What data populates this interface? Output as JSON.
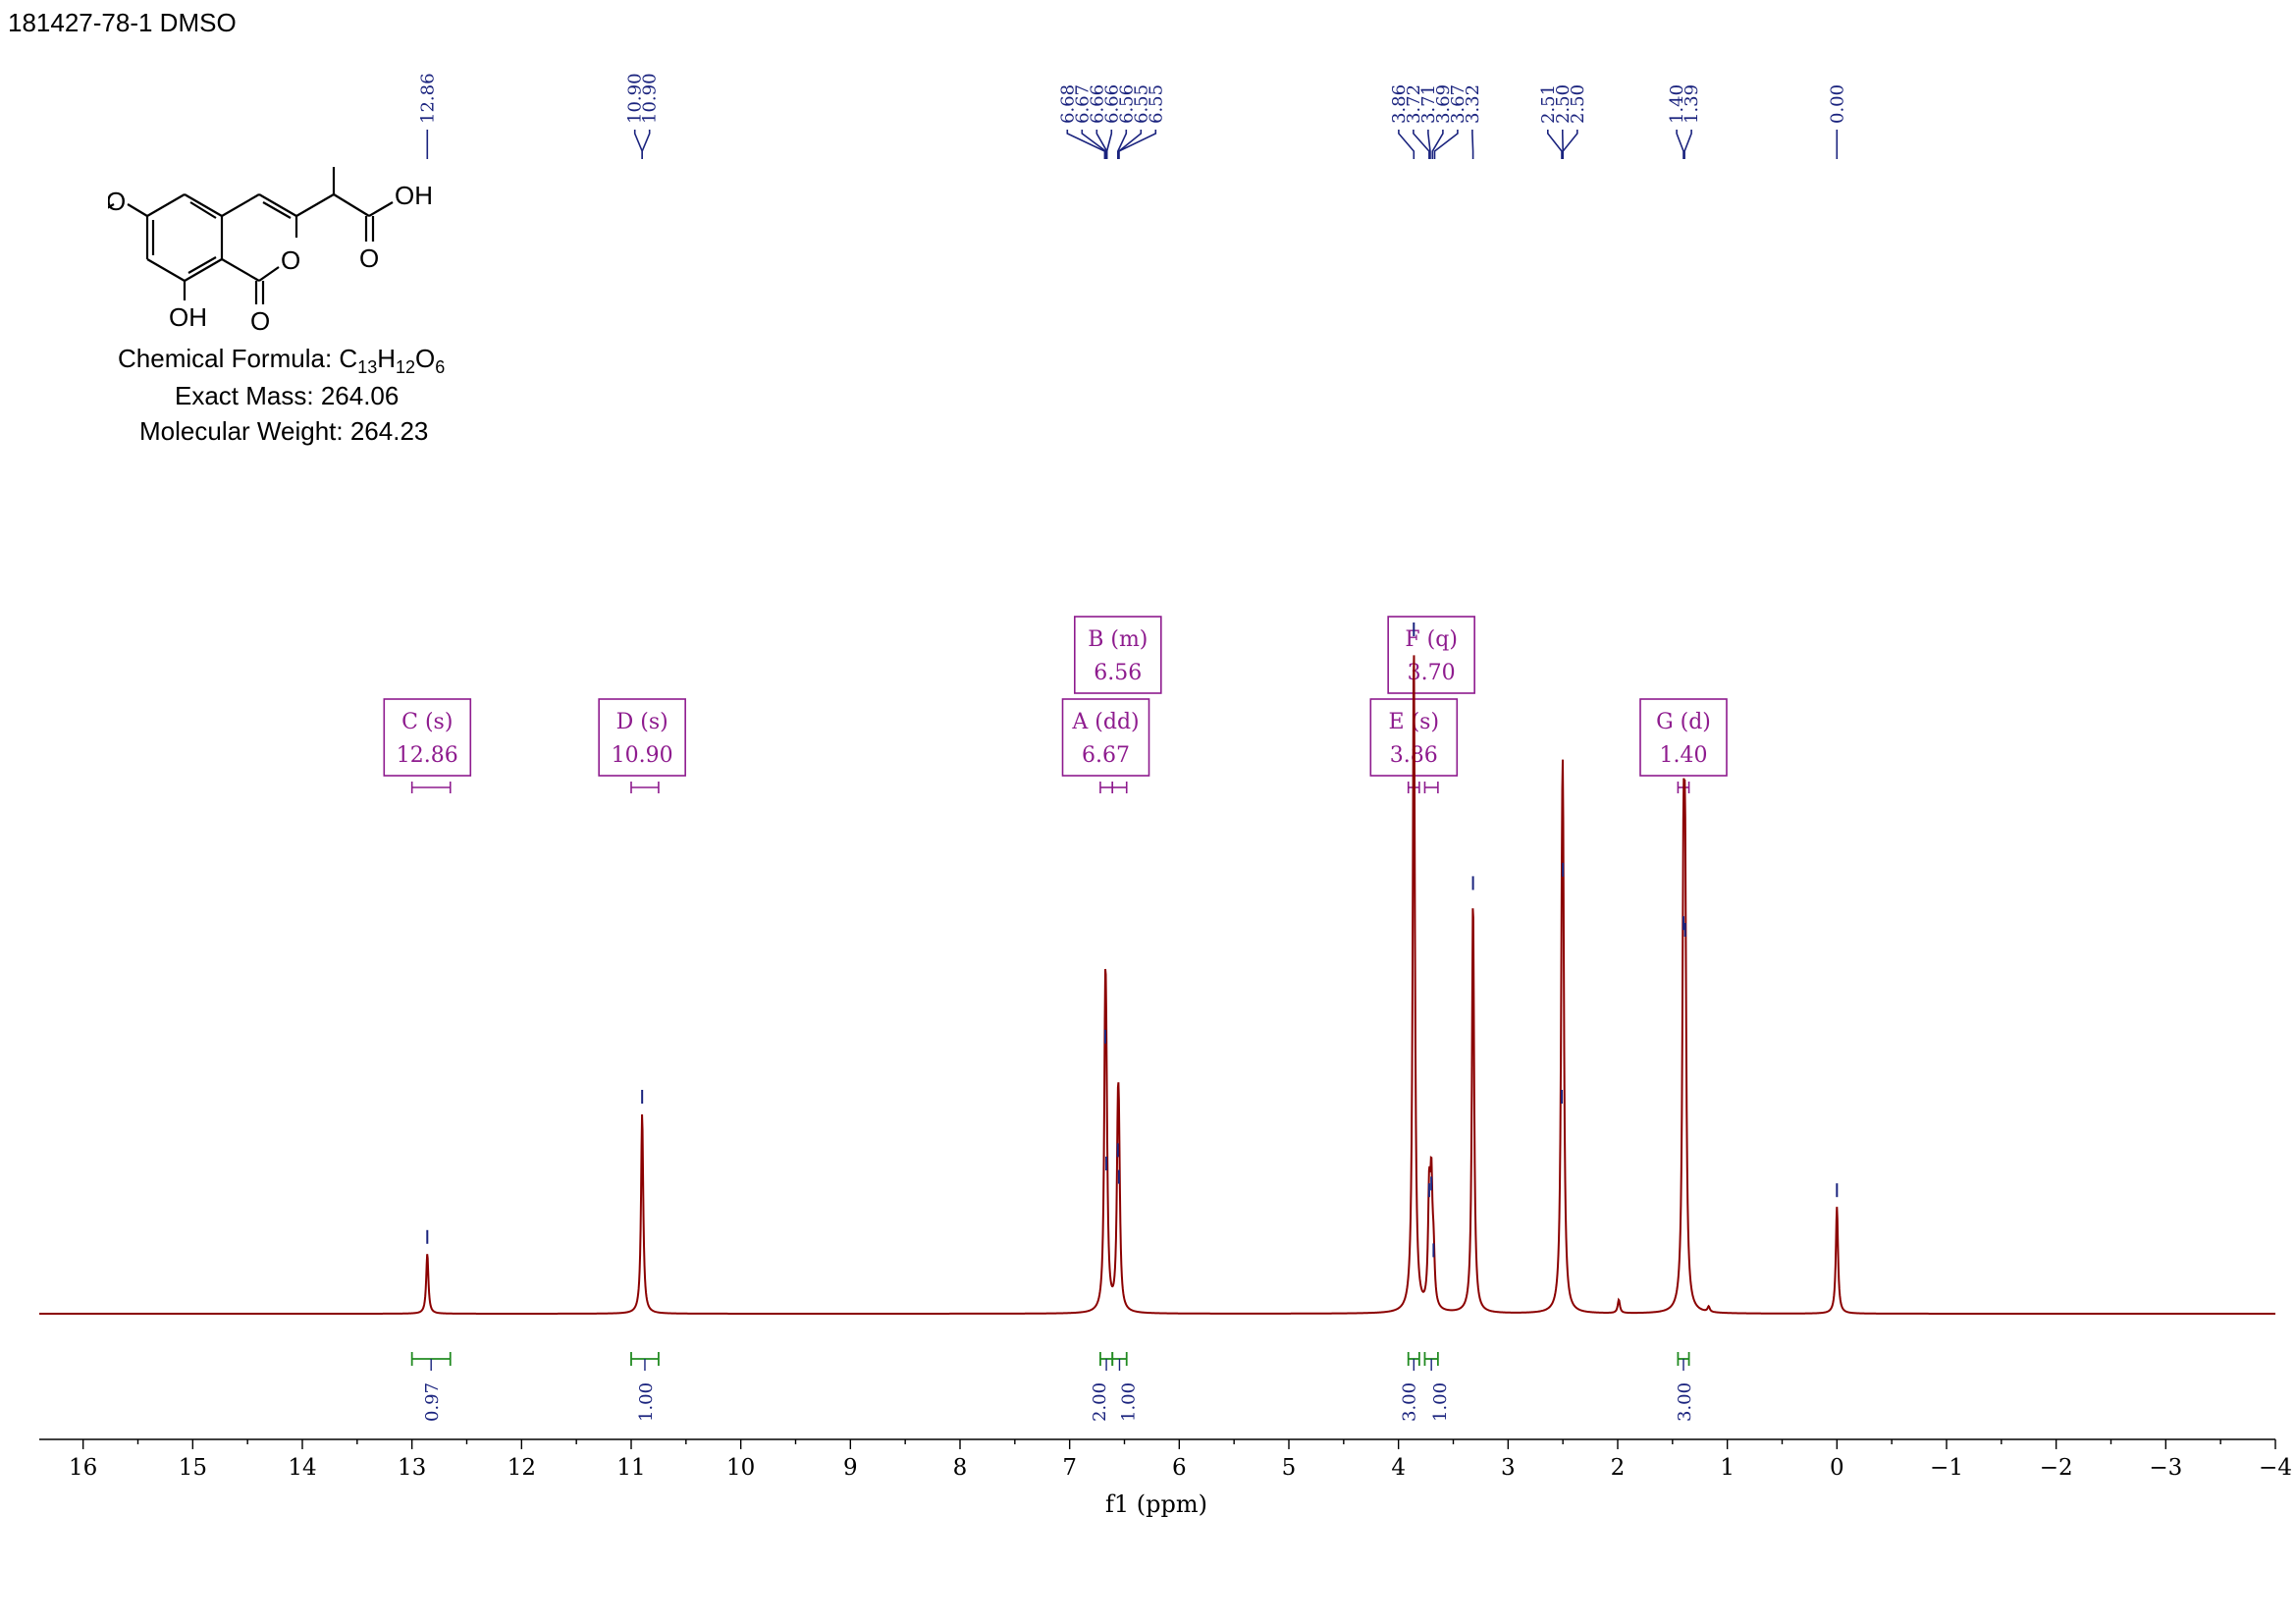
{
  "sample_title": "181427-78-1 DMSO",
  "compound": {
    "formula_label": "Chemical Formula:",
    "formula": {
      "C": "C",
      "c_count": "13",
      "H": "H",
      "h_count": "12",
      "O": "O",
      "o_count": "6"
    },
    "exact_mass_label": "Exact Mass:",
    "exact_mass": "264.06",
    "mol_weight_label": "Molecular Weight:",
    "mol_weight": "264.23",
    "structure_labels": {
      "hydroxyl_phenol": "OH",
      "carboxylic": "OH",
      "carbonyl_o1": "O",
      "carbonyl_o2": "O",
      "ring_o": "O",
      "methoxy_o": "O"
    }
  },
  "colors": {
    "spectrum": "#8b0000",
    "peak_labels": "#1a237e",
    "multiplet_boxes": "#8e1b8e",
    "integrals": "#228b22",
    "axis": "#000000"
  },
  "chart_data": {
    "type": "line",
    "xlabel": "f1 (ppm)",
    "xlim": [
      16.4,
      -4.0
    ],
    "x_reversed": true,
    "x_ticks": [
      "16",
      "15",
      "14",
      "13",
      "12",
      "11",
      "10",
      "9",
      "8",
      "7",
      "6",
      "5",
      "4",
      "3",
      "2",
      "1",
      "0",
      "-1",
      "-2",
      "-3",
      "-4"
    ],
    "peak_labels": [
      {
        "group": 1,
        "values": [
          "12.86"
        ]
      },
      {
        "group": 2,
        "values": [
          "10.90",
          "10.90"
        ]
      },
      {
        "group": 3,
        "values": [
          "6.68",
          "6.67",
          "6.66",
          "6.66",
          "6.56",
          "6.55",
          "6.55"
        ]
      },
      {
        "group": 4,
        "values": [
          "3.86",
          "3.72",
          "3.71",
          "3.69",
          "3.67",
          "3.32"
        ]
      },
      {
        "group": 5,
        "values": [
          "2.51",
          "2.50",
          "2.50"
        ]
      },
      {
        "group": 6,
        "values": [
          "1.40",
          "1.39"
        ]
      },
      {
        "group": 7,
        "values": [
          "0.00"
        ]
      }
    ],
    "peaks": [
      {
        "x": 12.86,
        "height": 0.09
      },
      {
        "x": 10.9,
        "height": 0.3
      },
      {
        "x": 6.675,
        "height": 0.39
      },
      {
        "x": 6.665,
        "height": 0.2
      },
      {
        "x": 6.56,
        "height": 0.22
      },
      {
        "x": 6.55,
        "height": 0.18
      },
      {
        "x": 3.86,
        "height": 1.0
      },
      {
        "x": 3.72,
        "height": 0.16
      },
      {
        "x": 3.7,
        "height": 0.17
      },
      {
        "x": 3.68,
        "height": 0.07
      },
      {
        "x": 3.32,
        "height": 0.62
      },
      {
        "x": 2.51,
        "height": 0.3
      },
      {
        "x": 2.5,
        "height": 0.64
      },
      {
        "x": 1.4,
        "height": 0.56
      },
      {
        "x": 1.385,
        "height": 0.55
      },
      {
        "x": 1.99,
        "height": 0.02
      },
      {
        "x": 1.17,
        "height": 0.008
      },
      {
        "x": 0.0,
        "height": 0.16
      }
    ],
    "multiplets": [
      {
        "label": "C (s)",
        "value": "12.86",
        "from": 13.0,
        "to": 12.65
      },
      {
        "label": "D (s)",
        "value": "10.90",
        "from": 11.0,
        "to": 10.75
      },
      {
        "label": "A (dd)",
        "value": "6.67",
        "from": 6.72,
        "to": 6.61
      },
      {
        "label": "B (m)",
        "value": "6.56",
        "from": 6.61,
        "to": 6.48
      },
      {
        "label": "E (s)",
        "value": "3.86",
        "from": 3.91,
        "to": 3.81
      },
      {
        "label": "F (q)",
        "value": "3.70",
        "from": 3.76,
        "to": 3.64
      },
      {
        "label": "G (d)",
        "value": "1.40",
        "from": 1.45,
        "to": 1.35
      }
    ],
    "integrals": [
      {
        "value": "0.97",
        "from": 13.0,
        "to": 12.65
      },
      {
        "value": "1.00",
        "from": 11.0,
        "to": 10.75
      },
      {
        "value": "2.00",
        "from": 6.72,
        "to": 6.61
      },
      {
        "value": "1.00",
        "from": 6.61,
        "to": 6.48
      },
      {
        "value": "3.00",
        "from": 3.91,
        "to": 3.81
      },
      {
        "value": "1.00",
        "from": 3.76,
        "to": 3.64
      },
      {
        "value": "3.00",
        "from": 1.45,
        "to": 1.35
      }
    ]
  }
}
